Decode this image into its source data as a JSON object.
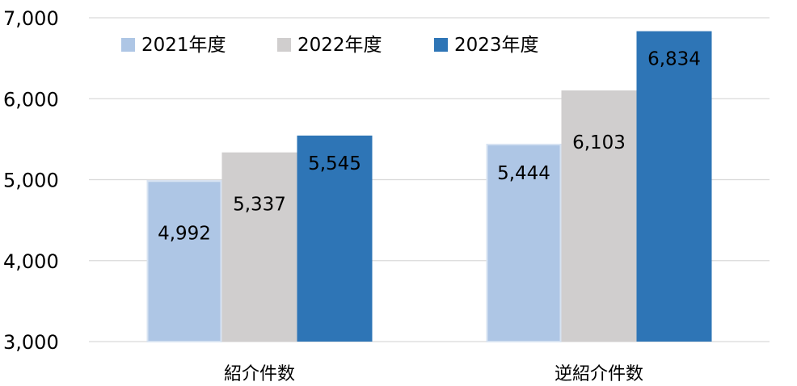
{
  "chart_data": {
    "type": "bar",
    "title": "",
    "xlabel": "",
    "ylabel": "",
    "categories": [
      "紹介件数",
      "逆紹介件数"
    ],
    "series": [
      {
        "name": "2021年度",
        "values": [
          4992,
          5444
        ],
        "color": "#aec6e5",
        "label_color": "#000000"
      },
      {
        "name": "2022年度",
        "values": [
          5337,
          6103
        ],
        "color": "#d0cece",
        "label_color": "#000000"
      },
      {
        "name": "2023年度",
        "values": [
          5545,
          6834
        ],
        "color": "#2e75b6",
        "label_color": "#000000"
      }
    ],
    "ylim": [
      3000,
      7000
    ],
    "yticks": [
      3000,
      4000,
      5000,
      6000,
      7000
    ],
    "ytick_labels": [
      "3,000",
      "4,000",
      "5,000",
      "6,000",
      "7,000"
    ],
    "data_labels": [
      [
        "4,992",
        "5,444"
      ],
      [
        "5,337",
        "6,103"
      ],
      [
        "5,545",
        "6,834"
      ]
    ],
    "grid": true,
    "legend_position": "top-left",
    "gridline_color": "#d9d9d9"
  }
}
